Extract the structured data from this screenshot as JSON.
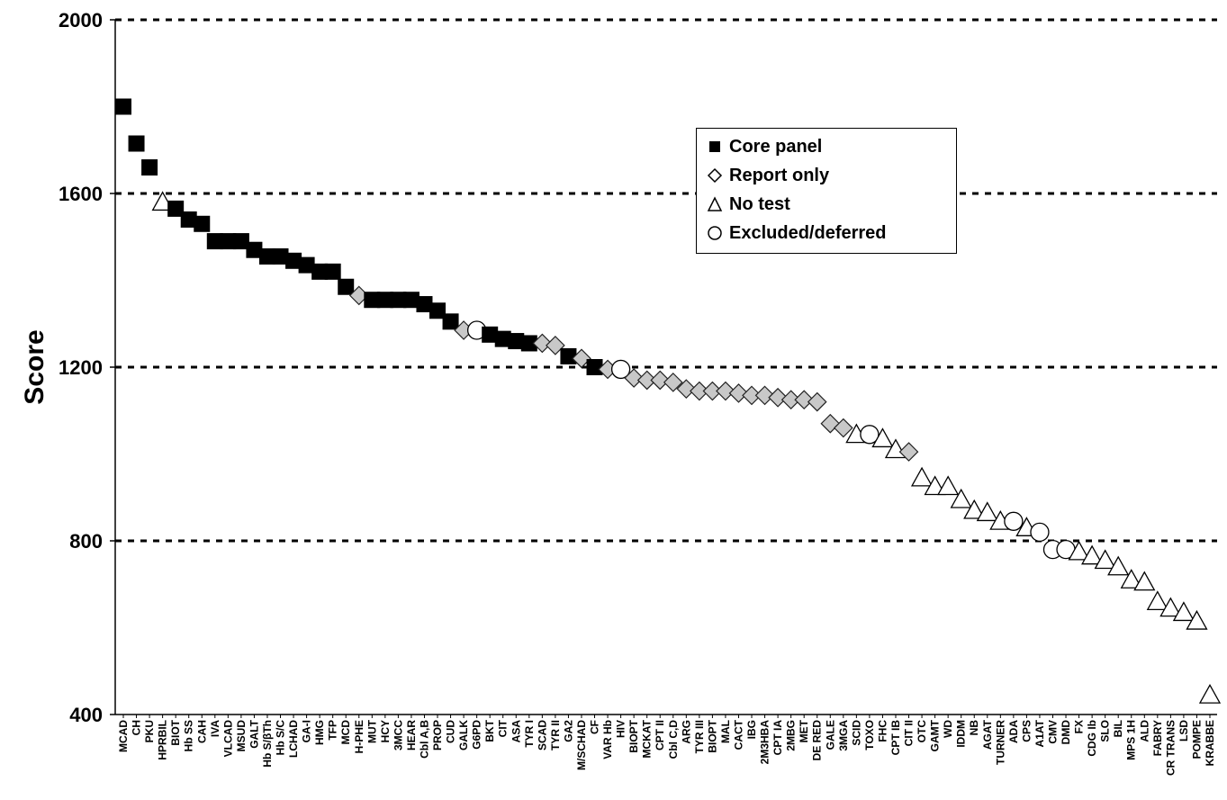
{
  "chart_data": {
    "type": "scatter",
    "title": "",
    "xlabel": "",
    "ylabel": "Score",
    "ylim": [
      400,
      2000
    ],
    "yticks": [
      400,
      800,
      1200,
      1600,
      2000
    ],
    "grid": "horizontal dashed",
    "legend_position": "upper-right",
    "series_legend": [
      {
        "key": "core",
        "name": "Core panel",
        "marker": "filled-square"
      },
      {
        "key": "report",
        "name": "Report only",
        "marker": "diamond"
      },
      {
        "key": "notest",
        "name": "No test",
        "marker": "triangle"
      },
      {
        "key": "excluded",
        "name": "Excluded/deferred",
        "marker": "circle"
      }
    ],
    "points": [
      {
        "label": "MCAD",
        "value": 1800,
        "group": "core"
      },
      {
        "label": "CH",
        "value": 1715,
        "group": "core"
      },
      {
        "label": "PKU",
        "value": 1660,
        "group": "core"
      },
      {
        "label": "HPRBIL",
        "value": 1580,
        "group": "notest"
      },
      {
        "label": "BIOT",
        "value": 1565,
        "group": "core"
      },
      {
        "label": "Hb SS",
        "value": 1540,
        "group": "core"
      },
      {
        "label": "CAH",
        "value": 1530,
        "group": "core"
      },
      {
        "label": "IVA",
        "value": 1490,
        "group": "core"
      },
      {
        "label": "VLCAD",
        "value": 1490,
        "group": "core"
      },
      {
        "label": "MSUD",
        "value": 1490,
        "group": "core"
      },
      {
        "label": "GALT",
        "value": 1470,
        "group": "core"
      },
      {
        "label": "Hb S/βTh",
        "value": 1455,
        "group": "core"
      },
      {
        "label": "Hb S/C",
        "value": 1455,
        "group": "core"
      },
      {
        "label": "LCHAD",
        "value": 1445,
        "group": "core"
      },
      {
        "label": "GA-I",
        "value": 1435,
        "group": "core"
      },
      {
        "label": "HMG",
        "value": 1420,
        "group": "core"
      },
      {
        "label": "TFP",
        "value": 1420,
        "group": "core"
      },
      {
        "label": "MCD",
        "value": 1385,
        "group": "core"
      },
      {
        "label": "H-PHE",
        "value": 1365,
        "group": "report"
      },
      {
        "label": "MUT",
        "value": 1355,
        "group": "core"
      },
      {
        "label": "HCY",
        "value": 1355,
        "group": "core"
      },
      {
        "label": "3MCC",
        "value": 1355,
        "group": "core"
      },
      {
        "label": "HEAR",
        "value": 1355,
        "group": "core"
      },
      {
        "label": "Cbl A,B",
        "value": 1345,
        "group": "core"
      },
      {
        "label": "PROP",
        "value": 1330,
        "group": "core"
      },
      {
        "label": "CUD",
        "value": 1305,
        "group": "core"
      },
      {
        "label": "GALK",
        "value": 1285,
        "group": "report"
      },
      {
        "label": "G6PD",
        "value": 1285,
        "group": "excluded"
      },
      {
        "label": "BKT",
        "value": 1275,
        "group": "core"
      },
      {
        "label": "CIT",
        "value": 1265,
        "group": "core"
      },
      {
        "label": "ASA",
        "value": 1260,
        "group": "core"
      },
      {
        "label": "TYR I",
        "value": 1255,
        "group": "core"
      },
      {
        "label": "SCAD",
        "value": 1255,
        "group": "report"
      },
      {
        "label": "TYR II",
        "value": 1250,
        "group": "report"
      },
      {
        "label": "GA2",
        "value": 1225,
        "group": "core"
      },
      {
        "label": "M/SCHAD",
        "value": 1220,
        "group": "report"
      },
      {
        "label": "CF",
        "value": 1200,
        "group": "core"
      },
      {
        "label": "VAR Hb",
        "value": 1195,
        "group": "report"
      },
      {
        "label": "HIV",
        "value": 1195,
        "group": "excluded"
      },
      {
        "label": "BIOPT",
        "value": 1175,
        "group": "report"
      },
      {
        "label": "MCKAT",
        "value": 1170,
        "group": "report"
      },
      {
        "label": "CPT II",
        "value": 1170,
        "group": "report"
      },
      {
        "label": "Cbl C,D",
        "value": 1165,
        "group": "report"
      },
      {
        "label": "ARG",
        "value": 1150,
        "group": "report"
      },
      {
        "label": "TYR III",
        "value": 1145,
        "group": "report"
      },
      {
        "label": "BIOPT",
        "value": 1145,
        "group": "report"
      },
      {
        "label": "MAL",
        "value": 1145,
        "group": "report"
      },
      {
        "label": "CACT",
        "value": 1140,
        "group": "report"
      },
      {
        "label": "IBG",
        "value": 1135,
        "group": "report"
      },
      {
        "label": "2M3HBA",
        "value": 1135,
        "group": "report"
      },
      {
        "label": "CPT IA",
        "value": 1130,
        "group": "report"
      },
      {
        "label": "2MBG",
        "value": 1125,
        "group": "report"
      },
      {
        "label": "MET",
        "value": 1125,
        "group": "report"
      },
      {
        "label": "DE RED",
        "value": 1120,
        "group": "report"
      },
      {
        "label": "GALE",
        "value": 1070,
        "group": "report"
      },
      {
        "label": "3MGA",
        "value": 1060,
        "group": "report"
      },
      {
        "label": "SCID",
        "value": 1045,
        "group": "notest"
      },
      {
        "label": "TOXO",
        "value": 1045,
        "group": "excluded"
      },
      {
        "label": "FHC",
        "value": 1035,
        "group": "notest"
      },
      {
        "label": "CPT IB",
        "value": 1010,
        "group": "notest"
      },
      {
        "label": "CIT II",
        "value": 1005,
        "group": "report"
      },
      {
        "label": "OTC",
        "value": 945,
        "group": "notest"
      },
      {
        "label": "GAMT",
        "value": 925,
        "group": "notest"
      },
      {
        "label": "WD",
        "value": 925,
        "group": "notest"
      },
      {
        "label": "IDDM",
        "value": 895,
        "group": "notest"
      },
      {
        "label": "NB",
        "value": 870,
        "group": "notest"
      },
      {
        "label": "AGAT",
        "value": 865,
        "group": "notest"
      },
      {
        "label": "TURNER",
        "value": 845,
        "group": "notest"
      },
      {
        "label": "ADA",
        "value": 845,
        "group": "excluded"
      },
      {
        "label": "CPS",
        "value": 830,
        "group": "notest"
      },
      {
        "label": "A1AT",
        "value": 820,
        "group": "excluded"
      },
      {
        "label": "CMV",
        "value": 780,
        "group": "excluded"
      },
      {
        "label": "DMD",
        "value": 780,
        "group": "excluded"
      },
      {
        "label": "FX",
        "value": 775,
        "group": "notest"
      },
      {
        "label": "CDG Ib",
        "value": 765,
        "group": "notest"
      },
      {
        "label": "SLO",
        "value": 755,
        "group": "notest"
      },
      {
        "label": "BIL",
        "value": 740,
        "group": "notest"
      },
      {
        "label": "MPS 1H",
        "value": 710,
        "group": "notest"
      },
      {
        "label": "ALD",
        "value": 705,
        "group": "notest"
      },
      {
        "label": "FABRY",
        "value": 660,
        "group": "notest"
      },
      {
        "label": "CR TRANS",
        "value": 645,
        "group": "notest"
      },
      {
        "label": "LSD",
        "value": 635,
        "group": "notest"
      },
      {
        "label": "POMPE",
        "value": 615,
        "group": "notest"
      },
      {
        "label": "KRABBE",
        "value": 445,
        "group": "notest"
      }
    ]
  }
}
